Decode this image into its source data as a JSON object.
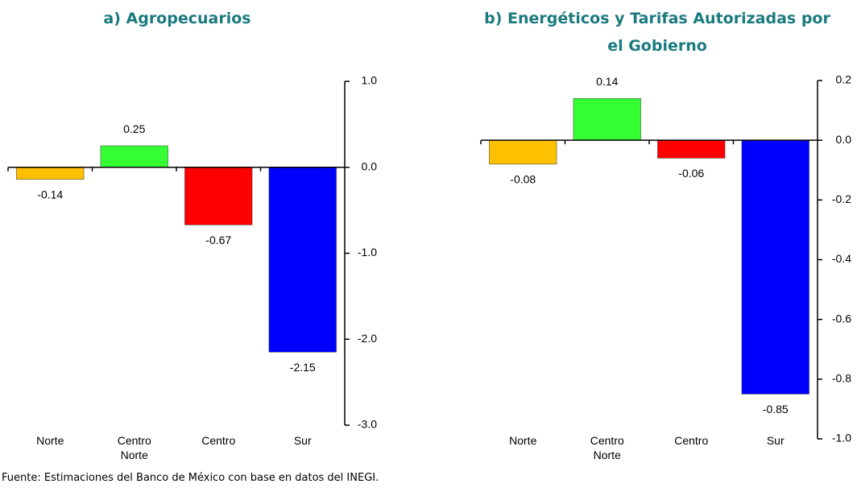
{
  "chart_data": [
    {
      "type": "bar",
      "title": "a) Agropecuarios",
      "categories": [
        "Norte",
        "Centro Norte",
        "Centro",
        "Sur"
      ],
      "values": [
        -0.14,
        0.25,
        -0.67,
        -2.15
      ],
      "colors": [
        "#ffc000",
        "#33ff33",
        "#ff0000",
        "#0000ff"
      ],
      "ylim": [
        -3,
        1
      ],
      "yticks": [
        {
          "value": 1,
          "label": "1.0"
        },
        {
          "value": 0,
          "label": "0.0"
        },
        {
          "value": -1,
          "label": "-1.0"
        },
        {
          "value": -2,
          "label": "-2.0"
        },
        {
          "value": -3,
          "label": "-3.0"
        }
      ]
    },
    {
      "type": "bar",
      "title": "b) Energéticos y Tarifas Autorizadas por el Gobierno",
      "categories": [
        "Norte",
        "Centro Norte",
        "Centro",
        "Sur"
      ],
      "values": [
        -0.08,
        0.14,
        -0.06,
        -0.85
      ],
      "colors": [
        "#ffc000",
        "#33ff33",
        "#ff0000",
        "#0000ff"
      ],
      "ylim": [
        -1,
        0.2
      ],
      "yticks": [
        0.2,
        {
          "value": 0,
          "label": "0.0"
        },
        -0.2,
        -0.4,
        -0.6,
        -0.8,
        {
          "value": -1,
          "label": "-1.0"
        }
      ]
    }
  ],
  "footnote": "Fuente: Estimaciones del Banco de México con base en datos del INEGI."
}
